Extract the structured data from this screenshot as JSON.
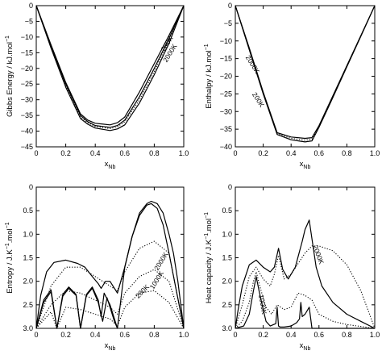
{
  "chart_data": [
    {
      "type": "line",
      "xlabel": "x",
      "xlabel_sub": "Nb",
      "ylabel": "Gibbs Energy / kJ.mol",
      "ylabel_sup": "−1",
      "xlim": [
        0,
        1
      ],
      "ylim": [
        -45,
        0
      ],
      "xticks": [
        "0",
        "0.2",
        "0.4",
        "0.6",
        "0.8",
        "1.0"
      ],
      "yticks": [
        "0",
        "−5",
        "−10",
        "−15",
        "−20",
        "−25",
        "−30",
        "−35",
        "−40",
        "−45"
      ],
      "annotations": [
        {
          "text": "200K",
          "x": 0.9,
          "y": -12.5
        },
        {
          "text": "2000K",
          "x": 0.92,
          "y": -15.5
        }
      ],
      "series": [
        {
          "style": "solid",
          "x": [
            0,
            0.1,
            0.2,
            0.3,
            0.35,
            0.4,
            0.5,
            0.55,
            0.6,
            0.7,
            0.8,
            0.9,
            1.0
          ],
          "y": [
            0,
            -13,
            -25,
            -35,
            -37,
            -38.2,
            -38.8,
            -38.2,
            -36.5,
            -29,
            -20,
            -10.5,
            0
          ]
        },
        {
          "style": "solid",
          "x": [
            0,
            0.1,
            0.2,
            0.3,
            0.35,
            0.4,
            0.5,
            0.55,
            0.6,
            0.7,
            0.8,
            0.9,
            1.0
          ],
          "y": [
            0,
            -13.5,
            -26,
            -36,
            -37.8,
            -39,
            -39.8,
            -39.3,
            -38,
            -31,
            -22,
            -12,
            0
          ]
        },
        {
          "style": "solid",
          "x": [
            0,
            0.1,
            0.2,
            0.3,
            0.35,
            0.4,
            0.5,
            0.55,
            0.6,
            0.7,
            0.8,
            0.9,
            1.0
          ],
          "y": [
            0,
            -12.5,
            -24.5,
            -34.5,
            -36.5,
            -37.5,
            -38,
            -37.3,
            -35.5,
            -27.5,
            -18.5,
            -9.5,
            0
          ]
        },
        {
          "style": "dotted",
          "x": [
            0,
            0.1,
            0.2,
            0.3,
            0.35,
            0.4,
            0.5,
            0.55,
            0.6,
            0.7,
            0.8,
            0.9,
            1.0
          ],
          "y": [
            0,
            -13,
            -25.5,
            -35.5,
            -37.3,
            -38.5,
            -39.2,
            -38.6,
            -37,
            -30,
            -21,
            -11,
            0
          ]
        }
      ]
    },
    {
      "type": "line",
      "xlabel": "x",
      "xlabel_sub": "Nb",
      "ylabel": "Enthalpy / kJ.mol",
      "ylabel_sup": "−1",
      "xlim": [
        0,
        1
      ],
      "ylim": [
        -40,
        0
      ],
      "xticks": [
        "0",
        "0.2",
        "0.4",
        "0.6",
        "0.8",
        "1.0"
      ],
      "yticks": [
        "0",
        "−5",
        "−10",
        "−15",
        "−20",
        "−25",
        "−30",
        "−35",
        "−40"
      ],
      "annotations": [
        {
          "text": "2000K",
          "x": 0.11,
          "y": -17
        },
        {
          "text": "200K",
          "x": 0.15,
          "y": -27
        }
      ],
      "series": [
        {
          "style": "solid",
          "x": [
            0,
            0.1,
            0.2,
            0.3,
            0.4,
            0.5,
            0.55,
            0.6,
            0.7,
            0.8,
            0.9,
            1.0
          ],
          "y": [
            0,
            -12,
            -24.5,
            -36,
            -37.2,
            -37.6,
            -37.4,
            -34,
            -25.5,
            -17,
            -8.5,
            0
          ]
        },
        {
          "style": "solid",
          "x": [
            0,
            0.1,
            0.2,
            0.3,
            0.4,
            0.5,
            0.55,
            0.6,
            0.7,
            0.8,
            0.9,
            1.0
          ],
          "y": [
            0,
            -12.5,
            -25,
            -36.5,
            -38,
            -38.6,
            -38.3,
            -34.5,
            -26,
            -17.3,
            -8.7,
            0
          ]
        },
        {
          "style": "dotted",
          "x": [
            0,
            0.1,
            0.2,
            0.3,
            0.4,
            0.5,
            0.55,
            0.6,
            0.7,
            0.8,
            0.9,
            1.0
          ],
          "y": [
            0,
            -12.2,
            -24.8,
            -36.3,
            -37.6,
            -38.1,
            -37.8,
            -34.2,
            -25.7,
            -17.1,
            -8.6,
            0
          ]
        }
      ]
    },
    {
      "type": "line",
      "xlabel": "x",
      "xlabel_sub": "Nb",
      "ylabel": "Entropy / J.K",
      "ylabel_sup": "−1",
      "ylabel_rest": ".mol",
      "ylabel_sup2": "−1",
      "xlim": [
        0,
        1
      ],
      "ylim": [
        0,
        3.0
      ],
      "xticks": [
        "0",
        "0.2",
        "0.4",
        "0.6",
        "0.8",
        "1.0"
      ],
      "yticks": [
        "0",
        "0.5",
        "1.0",
        "1.5",
        "2.0",
        "2.5",
        "3.0"
      ],
      "annotations": [
        {
          "text": "2000K",
          "x": 0.86,
          "y": 1.4
        },
        {
          "text": "1000K",
          "x": 0.83,
          "y": 1.0
        },
        {
          "text": "200K",
          "x": 0.73,
          "y": 0.75
        }
      ],
      "series": [
        {
          "style": "solid",
          "x": [
            0,
            0.03,
            0.07,
            0.12,
            0.2,
            0.28,
            0.33,
            0.38,
            0.42,
            0.44,
            0.47,
            0.5,
            0.53,
            0.55,
            0.6,
            0.65,
            0.7,
            0.75,
            0.78,
            0.82,
            0.86,
            0.9,
            0.93,
            0.96,
            1.0
          ],
          "y": [
            0,
            0.7,
            1.2,
            1.4,
            1.45,
            1.38,
            1.3,
            1.1,
            0.95,
            0.85,
            1.0,
            1.0,
            0.85,
            0.75,
            1.3,
            1.95,
            2.45,
            2.65,
            2.7,
            2.65,
            2.45,
            2.0,
            1.6,
            1.0,
            0
          ]
        },
        {
          "style": "solid",
          "x": [
            0,
            0.05,
            0.1,
            0.14,
            0.18,
            0.22,
            0.27,
            0.3,
            0.34,
            0.38,
            0.42,
            0.44,
            0.46,
            0.5,
            0.53,
            0.55,
            0.6,
            0.65,
            0.7,
            0.75,
            0.78,
            0.82,
            0.86,
            0.9,
            0.95,
            1.0
          ],
          "y": [
            0,
            0.6,
            0.82,
            0.0,
            0.72,
            0.88,
            0.72,
            0.0,
            0.72,
            0.88,
            0.6,
            0.25,
            0.75,
            0.5,
            0.2,
            0.0,
            1.3,
            1.95,
            2.4,
            2.62,
            2.65,
            2.55,
            2.2,
            1.6,
            0.8,
            0
          ]
        },
        {
          "style": "solid",
          "x": [
            0,
            0.05,
            0.1,
            0.14,
            0.18,
            0.22,
            0.27,
            0.3,
            0.34,
            0.38,
            0.42,
            0.45,
            0.48,
            0.5,
            0.53,
            0.55
          ],
          "y": [
            0,
            0.55,
            0.78,
            0.0,
            0.68,
            0.85,
            0.7,
            0.0,
            0.7,
            0.85,
            0.55,
            0.15,
            0.65,
            0.45,
            0.15,
            0.0
          ]
        },
        {
          "style": "dotted",
          "x": [
            0,
            0.1,
            0.2,
            0.3,
            0.4,
            0.5,
            0.55,
            0.6,
            0.7,
            0.8,
            0.9,
            1.0
          ],
          "y": [
            0,
            0.9,
            1.3,
            1.3,
            1.1,
            0.9,
            0.8,
            1.2,
            1.7,
            1.85,
            1.6,
            0
          ]
        },
        {
          "style": "dotted",
          "x": [
            0,
            0.1,
            0.2,
            0.3,
            0.4,
            0.5,
            0.55,
            0.6,
            0.7,
            0.8,
            0.9,
            1.0
          ],
          "y": [
            0,
            0.5,
            0.8,
            0.75,
            0.6,
            0.45,
            0.3,
            0.75,
            1.1,
            1.25,
            1.0,
            0
          ]
        },
        {
          "style": "dotted",
          "x": [
            0,
            0.1,
            0.14,
            0.2,
            0.3,
            0.4,
            0.5,
            0.55,
            0.6,
            0.7,
            0.8,
            0.9,
            1.0
          ],
          "y": [
            0,
            0.35,
            0.0,
            0.45,
            0.4,
            0.3,
            0.2,
            0.05,
            0.45,
            0.75,
            0.8,
            0.55,
            0
          ]
        }
      ]
    },
    {
      "type": "line",
      "xlabel": "x",
      "xlabel_sub": "Nb",
      "ylabel": "Heat capacity / J.K",
      "ylabel_sup": "−1",
      "ylabel_rest": ".mol",
      "ylabel_sup2": "−1",
      "xlim": [
        0,
        1
      ],
      "ylim": [
        0,
        3.0
      ],
      "xticks": [
        "0",
        "0.2",
        "0.4",
        "0.6",
        "0.8",
        "1.0"
      ],
      "yticks": [
        "0",
        "0.5",
        "1.0",
        "1.5",
        "2.0",
        "2.5",
        "3.0"
      ],
      "annotations": [
        {
          "text": "2000K",
          "x": 0.58,
          "y": 1.55
        },
        {
          "text": "1000K",
          "x": 0.18,
          "y": 0.5
        }
      ],
      "series": [
        {
          "style": "solid",
          "x": [
            0,
            0.02,
            0.05,
            0.1,
            0.15,
            0.2,
            0.25,
            0.28,
            0.31,
            0.34,
            0.38,
            0.43,
            0.48,
            0.5,
            0.53,
            0.55,
            0.58,
            0.62,
            0.7,
            0.8,
            0.9,
            1.0
          ],
          "y": [
            0,
            0.4,
            0.9,
            1.35,
            1.45,
            1.3,
            1.2,
            1.3,
            1.7,
            1.25,
            1.05,
            1.3,
            1.85,
            2.1,
            2.3,
            1.9,
            1.3,
            0.9,
            0.55,
            0.3,
            0.15,
            0
          ]
        },
        {
          "style": "solid",
          "x": [
            0,
            0.06,
            0.1,
            0.13,
            0.15,
            0.17,
            0.2,
            0.22,
            0.25,
            0.29,
            0.3,
            0.31,
            0.32,
            0.35,
            0.4,
            0.44,
            0.46,
            0.47,
            0.48,
            0.5,
            0.53,
            0.55,
            0.6,
            0.7,
            1.0
          ],
          "y": [
            0,
            0.05,
            0.3,
            0.8,
            1.1,
            0.8,
            0.4,
            0.15,
            0.05,
            0.1,
            0.45,
            0.05,
            0.03,
            0.03,
            0.05,
            0.12,
            0.2,
            0.55,
            0.25,
            0.3,
            0.45,
            0.0,
            0.0,
            0.0,
            0
          ]
        },
        {
          "style": "dotted",
          "x": [
            0,
            0.05,
            0.1,
            0.15,
            0.2,
            0.25,
            0.28,
            0.31,
            0.35,
            0.4,
            0.5,
            0.55,
            0.6,
            0.7,
            0.8,
            0.9,
            1.0
          ],
          "y": [
            0,
            0.5,
            1.1,
            1.3,
            1.05,
            0.9,
            1.15,
            1.55,
            1.05,
            1.15,
            1.6,
            1.75,
            1.75,
            1.65,
            1.35,
            0.8,
            0
          ]
        },
        {
          "style": "dotted",
          "x": [
            0,
            0.05,
            0.1,
            0.13,
            0.15,
            0.18,
            0.22,
            0.26,
            0.3,
            0.35,
            0.4,
            0.45,
            0.5,
            0.55,
            0.6,
            0.7,
            0.8,
            1.0
          ],
          "y": [
            0,
            0.15,
            0.55,
            1.0,
            1.2,
            0.85,
            0.45,
            0.3,
            0.5,
            0.4,
            0.45,
            0.75,
            0.7,
            0.6,
            0.3,
            0.15,
            0.08,
            0
          ]
        }
      ]
    }
  ]
}
